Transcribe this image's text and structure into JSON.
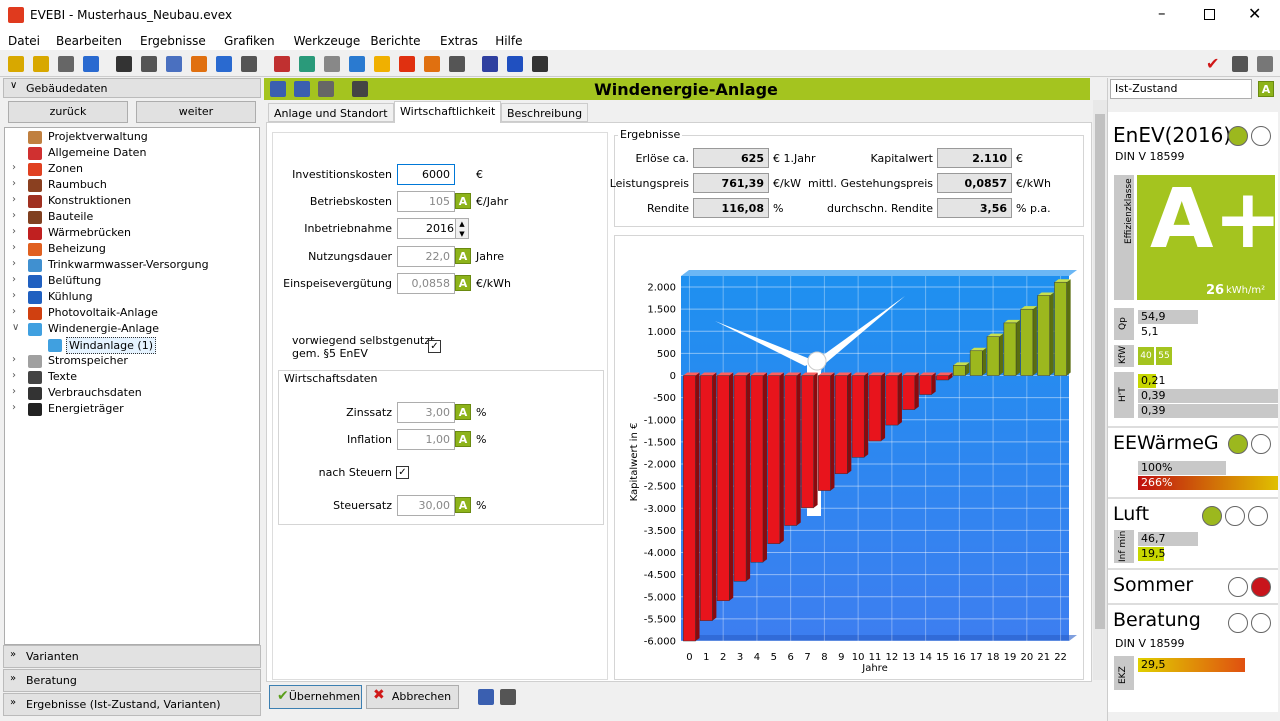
{
  "window": {
    "title": "EVEBI - Musterhaus_Neubau.evex"
  },
  "menu": [
    "Datei",
    "Bearbeiten",
    "Ergebnisse",
    "Grafiken",
    "Werkzeuge",
    "Berichte",
    "Extras",
    "Hilfe"
  ],
  "left": {
    "header": "Gebäudedaten",
    "buttons": [
      "zurück",
      "weiter"
    ],
    "tree": [
      {
        "label": "Projektverwaltung",
        "level": 0,
        "expander": false
      },
      {
        "label": "Allgemeine Daten",
        "level": 0,
        "expander": false
      },
      {
        "label": "Zonen",
        "level": 0,
        "expander": true
      },
      {
        "label": "Raumbuch",
        "level": 0,
        "expander": true
      },
      {
        "label": "Konstruktionen",
        "level": 0,
        "expander": true
      },
      {
        "label": "Bauteile",
        "level": 0,
        "expander": true
      },
      {
        "label": "Wärmebrücken",
        "level": 0,
        "expander": true
      },
      {
        "label": "Beheizung",
        "level": 0,
        "expander": true
      },
      {
        "label": "Trinkwarmwasser-Versorgung",
        "level": 0,
        "expander": true
      },
      {
        "label": "Belüftung",
        "level": 0,
        "expander": true
      },
      {
        "label": "Kühlung",
        "level": 0,
        "expander": true
      },
      {
        "label": "Photovoltaik-Anlage",
        "level": 0,
        "expander": true
      },
      {
        "label": "Windenergie-Anlage",
        "level": 0,
        "expander": true,
        "expanded": true
      },
      {
        "label": "Windanlage (1)",
        "level": 1,
        "expander": false,
        "selected": true
      },
      {
        "label": "Stromspeicher",
        "level": 0,
        "expander": true
      },
      {
        "label": "Texte",
        "level": 0,
        "expander": true
      },
      {
        "label": "Verbrauchsdaten",
        "level": 0,
        "expander": true
      },
      {
        "label": "Energieträger",
        "level": 0,
        "expander": true
      }
    ],
    "footers": [
      "Varianten",
      "Beratung",
      "Ergebnisse (Ist-Zustand, Varianten)"
    ]
  },
  "main": {
    "title": "Windenergie-Anlage",
    "tabs": [
      "Anlage und Standort",
      "Wirtschaftlichkeit",
      "Beschreibung"
    ],
    "active_tab": 1,
    "fields": [
      {
        "label": "Investitionskosten",
        "value": "6000",
        "unit": "€",
        "focus": true
      },
      {
        "label": "Betriebskosten",
        "value": "105",
        "unit": "€/Jahr",
        "auto": true
      },
      {
        "label": "Inbetriebnahme",
        "value": "2016",
        "spin": true
      },
      {
        "label": "Nutzungsdauer",
        "value": "22,0",
        "unit": "Jahre",
        "auto": true
      },
      {
        "label": "Einspeisevergütung",
        "value": "0,0858",
        "unit": "€/kWh",
        "auto": true
      }
    ],
    "selfuse": [
      "vorwiegend selbstgenutzt",
      "gem. §5 EnEV"
    ],
    "group": "Wirtschaftsdaten",
    "group_fields": [
      {
        "label": "Zinssatz",
        "value": "3,00",
        "unit": "%",
        "auto": true
      },
      {
        "label": "Inflation",
        "value": "1,00",
        "unit": "%",
        "auto": true
      }
    ],
    "tax_label": "nach Steuern",
    "tax_field": {
      "label": "Steuersatz",
      "value": "30,00",
      "unit": "%",
      "auto": true
    },
    "results_title": "Ergebnisse",
    "results": [
      {
        "label": "Erlöse ca.",
        "value": "625",
        "unit": "€ 1.Jahr"
      },
      {
        "label": "Kapitalwert",
        "value": "2.110",
        "unit": "€"
      },
      {
        "label": "Leistungspreis",
        "value": "761,39",
        "unit": "€/kW"
      },
      {
        "label": "mittl. Gestehungspreis",
        "value": "0,0857",
        "unit": "€/kWh"
      },
      {
        "label": "Rendite",
        "value": "116,08",
        "unit": "%"
      },
      {
        "label": "durchschn. Rendite",
        "value": "3,56",
        "unit": "% p.a."
      }
    ],
    "buttons": [
      "Übernehmen",
      "Abbrechen"
    ]
  },
  "chart_data": {
    "type": "bar",
    "y_label": "Kapitalwert in €",
    "x_label": "Jahre",
    "categories": [
      "0",
      "1",
      "2",
      "3",
      "4",
      "5",
      "6",
      "7",
      "8",
      "9",
      "10",
      "11",
      "12",
      "13",
      "14",
      "15",
      "16",
      "17",
      "18",
      "19",
      "20",
      "21",
      "22"
    ],
    "values": [
      -6000,
      -5540,
      -5090,
      -4650,
      -4220,
      -3800,
      -3390,
      -2990,
      -2600,
      -2220,
      -1850,
      -1480,
      -1120,
      -770,
      -430,
      -100,
      230,
      560,
      880,
      1190,
      1500,
      1810,
      2110
    ],
    "colors": {
      "negative": "#e8141c",
      "positive": "#9cb81e"
    },
    "ylim": [
      -6000,
      2250
    ],
    "yticks": [
      {
        "value": 2000,
        "label": "2.000"
      },
      {
        "value": 1500,
        "label": "1.500"
      },
      {
        "value": 1000,
        "label": "1.000"
      },
      500,
      0,
      -500,
      {
        "value": -1000,
        "label": "-1.000"
      },
      {
        "value": -1500,
        "label": "-1.500"
      },
      {
        "value": -2000,
        "label": "-2.000"
      },
      {
        "value": -2500,
        "label": "-2.500"
      },
      {
        "value": -3000,
        "label": "-3.000"
      },
      {
        "value": -3500,
        "label": "-3.500"
      },
      {
        "value": -4000,
        "label": "-4.000"
      },
      {
        "value": -4500,
        "label": "-4.500"
      },
      {
        "value": -5000,
        "label": "-5.000"
      },
      {
        "value": -5500,
        "label": "-5.500"
      },
      {
        "value": -6000,
        "label": "-6.000"
      }
    ],
    "grid": true
  },
  "right": {
    "mode": "Ist-Zustand",
    "enev": "EnEV(2016)",
    "din": "DIN V 18599",
    "class_label": "Effizienzklasse",
    "class": "A+",
    "class_value": "26",
    "class_unit": "kWh/m²",
    "qp_label": "Qp",
    "qp": [
      "54,9",
      "5,1"
    ],
    "kfw_label": "KfW",
    "kfw": [
      "40",
      "55"
    ],
    "ht_label": "H'T",
    "ht": [
      "0,21",
      "0,39",
      "0,39"
    ],
    "eew": "EEWärmeG",
    "eew_values": [
      "100%",
      "266%"
    ],
    "luft": "Luft",
    "inf_label": "Inf min",
    "inf": [
      "46,7",
      "19,5"
    ],
    "sommer": "Sommer",
    "beratung": "Beratung",
    "din2": "DIN V 18599",
    "ekz_label": "EKZ",
    "ekz": "29,5"
  }
}
